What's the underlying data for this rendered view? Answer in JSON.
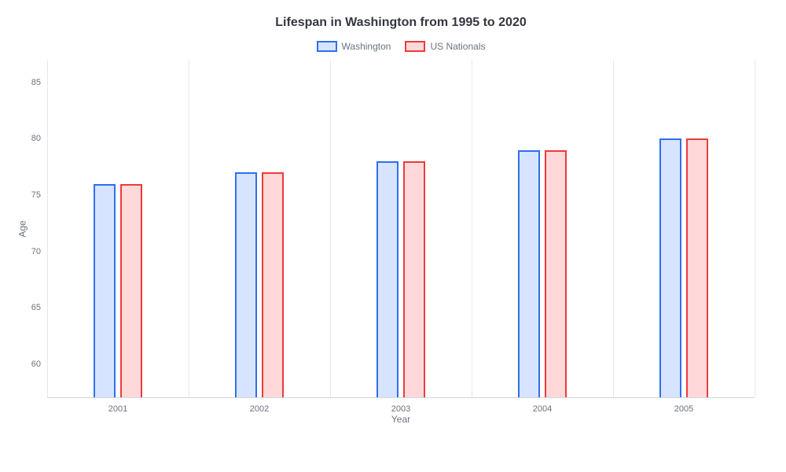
{
  "chart": {
    "type": "bar",
    "title": "Lifespan in Washington from 1995 to 2020",
    "title_fontsize": 16,
    "title_color": "#333740",
    "xlabel": "Year",
    "ylabel": "Age",
    "axis_label_fontsize": 12,
    "axis_label_color": "#6b7280",
    "tick_fontsize": 11,
    "tick_color": "#6b7280",
    "legend_fontsize": 12,
    "background_color": "#ffffff",
    "grid_color": "#e5e7eb",
    "baseline_color": "#d1d5db",
    "ylim": [
      57,
      87
    ],
    "yticks": [
      60,
      65,
      70,
      75,
      80,
      85
    ],
    "categories": [
      "2001",
      "2002",
      "2003",
      "2004",
      "2005"
    ],
    "bar_width_pct": 3.2,
    "bar_gap_pct": 0.6,
    "bar_border_width": 2,
    "series": [
      {
        "name": "Washington",
        "fill_color": "#d6e4ff",
        "border_color": "#2f6fed",
        "values": [
          76,
          77,
          78,
          79,
          80
        ]
      },
      {
        "name": "US Nationals",
        "fill_color": "#ffd9d9",
        "border_color": "#ec3b3b",
        "values": [
          76,
          77,
          78,
          79,
          80
        ]
      }
    ]
  }
}
